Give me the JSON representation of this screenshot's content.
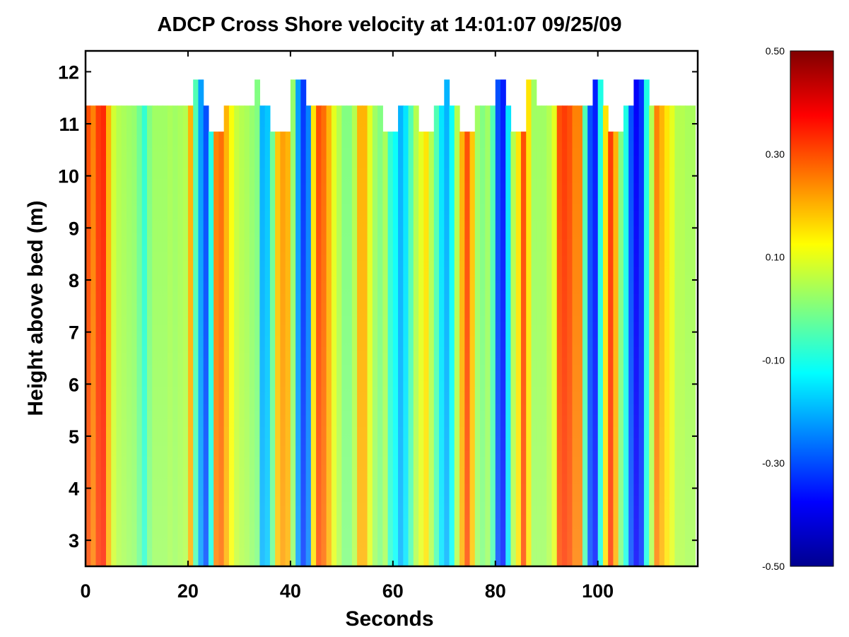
{
  "chart_data": {
    "type": "heatmap",
    "title": "ADCP Cross Shore velocity at 14:01:07 09/25/09",
    "xlabel": "Seconds",
    "ylabel": "Height above bed (m)",
    "xlim": [
      0,
      119.5
    ],
    "ylim": [
      2.5,
      12.4
    ],
    "xticks": [
      "0",
      "20",
      "40",
      "60",
      "80",
      "100"
    ],
    "xtick_values": [
      0,
      20,
      40,
      60,
      80,
      100
    ],
    "yticks": [
      "3",
      "4",
      "5",
      "6",
      "7",
      "8",
      "9",
      "10",
      "11",
      "12"
    ],
    "ytick_values": [
      3,
      4,
      5,
      6,
      7,
      8,
      9,
      10,
      11,
      12
    ],
    "colorbar": {
      "colormap": "jet",
      "range": [
        -0.5,
        0.5
      ],
      "ticks": [
        "0.50",
        "0.30",
        "0.10",
        "-0.10",
        "-0.30",
        "-0.50"
      ],
      "tick_values": [
        0.5,
        0.3,
        0.1,
        -0.1,
        -0.3,
        -0.5
      ]
    },
    "cell_width_s": 1,
    "profile_velocity_by_second": [
      0.3,
      0.25,
      0.32,
      0.34,
      0.2,
      0.08,
      0.05,
      0.04,
      0.03,
      0.02,
      -0.02,
      -0.08,
      0.0,
      0.03,
      0.03,
      0.03,
      0.04,
      0.03,
      0.04,
      0.05,
      0.2,
      -0.05,
      -0.22,
      -0.3,
      -0.1,
      0.25,
      0.27,
      0.2,
      0.12,
      0.07,
      0.05,
      0.04,
      0.02,
      0.0,
      -0.2,
      -0.18,
      -0.02,
      0.18,
      0.22,
      0.2,
      0.02,
      -0.22,
      -0.32,
      -0.25,
      0.15,
      0.3,
      0.27,
      0.2,
      0.1,
      0.05,
      0.0,
      0.0,
      0.05,
      0.2,
      0.2,
      0.1,
      0.03,
      0.0,
      0.04,
      -0.08,
      -0.12,
      -0.2,
      -0.15,
      -0.05,
      0.05,
      0.1,
      0.15,
      0.05,
      -0.05,
      -0.15,
      -0.2,
      -0.12,
      0.05,
      0.2,
      0.3,
      0.18,
      0.03,
      0.0,
      0.03,
      -0.05,
      -0.3,
      -0.35,
      -0.15,
      0.05,
      0.15,
      0.3,
      0.15,
      0.03,
      0.03,
      0.03,
      0.05,
      0.1,
      0.3,
      0.32,
      0.3,
      0.25,
      0.25,
      -0.05,
      -0.3,
      -0.35,
      -0.1,
      0.15,
      0.32,
      0.2,
      0.0,
      -0.1,
      -0.3,
      -0.38,
      -0.33,
      -0.1,
      0.05,
      0.25,
      0.2,
      0.15,
      0.1,
      0.05,
      0.05,
      0.04,
      0.04
    ],
    "top_segments": [
      {
        "x": [
          0,
          21.5
        ],
        "top": 11.35
      },
      {
        "x": [
          21.5,
          23.5
        ],
        "top": 11.85
      },
      {
        "x": [
          23.5,
          24.5
        ],
        "top": 11.35
      },
      {
        "x": [
          24.5,
          27.5
        ],
        "top": 10.85
      },
      {
        "x": [
          27.5,
          33.5
        ],
        "top": 11.35
      },
      {
        "x": [
          33.5,
          34.5
        ],
        "top": 11.85
      },
      {
        "x": [
          34.5,
          36.5
        ],
        "top": 11.35
      },
      {
        "x": [
          36.5,
          40.5
        ],
        "top": 10.85
      },
      {
        "x": [
          40.5,
          43.5
        ],
        "top": 11.85
      },
      {
        "x": [
          43.5,
          58.5
        ],
        "top": 11.35
      },
      {
        "x": [
          58.5,
          61.5
        ],
        "top": 10.85
      },
      {
        "x": [
          61.5,
          65.5
        ],
        "top": 11.35
      },
      {
        "x": [
          65.5,
          68.5
        ],
        "top": 10.85
      },
      {
        "x": [
          68.5,
          70.5
        ],
        "top": 11.35
      },
      {
        "x": [
          70.5,
          71.5
        ],
        "top": 11.85
      },
      {
        "x": [
          71.5,
          73.5
        ],
        "top": 11.35
      },
      {
        "x": [
          73.5,
          76.5
        ],
        "top": 10.85
      },
      {
        "x": [
          76.5,
          80.5
        ],
        "top": 11.35
      },
      {
        "x": [
          80.5,
          82.5
        ],
        "top": 11.85
      },
      {
        "x": [
          82.5,
          83.5
        ],
        "top": 11.35
      },
      {
        "x": [
          83.5,
          86.5
        ],
        "top": 10.85
      },
      {
        "x": [
          86.5,
          88.5
        ],
        "top": 11.85
      },
      {
        "x": [
          88.5,
          99.5
        ],
        "top": 11.35
      },
      {
        "x": [
          99.5,
          101.5
        ],
        "top": 11.85
      },
      {
        "x": [
          101.5,
          102.5
        ],
        "top": 11.35
      },
      {
        "x": [
          102.5,
          105.5
        ],
        "top": 10.85
      },
      {
        "x": [
          105.5,
          107.5
        ],
        "top": 11.35
      },
      {
        "x": [
          107.5,
          110.5
        ],
        "top": 11.85
      },
      {
        "x": [
          110.5,
          119.5
        ],
        "top": 11.35
      }
    ]
  }
}
